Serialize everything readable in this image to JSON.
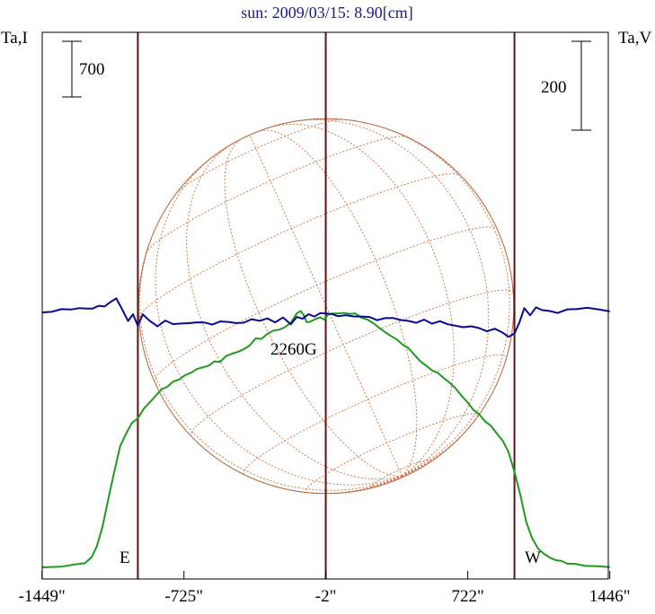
{
  "chart_data": {
    "type": "line",
    "title": "sun: 2009/03/15: 8.90[cm]",
    "left_axis_label": "Ta,I",
    "right_axis_label": "Ta,V",
    "x_ticks": [
      {
        "value": -1449,
        "label": "-1449\""
      },
      {
        "value": -725,
        "label": "-725\""
      },
      {
        "value": -2,
        "label": "-2\""
      },
      {
        "value": 722,
        "label": "722\""
      },
      {
        "value": 1446,
        "label": "1446\""
      }
    ],
    "xlim": [
      -1449,
      1446
    ],
    "scale_bar_left": {
      "label": "700",
      "value": 700
    },
    "scale_bar_right": {
      "label": "200",
      "value": 200
    },
    "limb_lines": [
      -960,
      -2,
      960
    ],
    "disk_radius_arcsec": 960,
    "east_label": "E",
    "west_label": "W",
    "annotation": "2260G",
    "grid": false,
    "series": [
      {
        "color": "#1f9a1f",
        "x": [
          -1449,
          -1350,
          -1280,
          -1230,
          -1195,
          -1170,
          -1140,
          -1110,
          -1080,
          -1050,
          -1020,
          -990,
          -960,
          -930,
          -900,
          -870,
          -840,
          -810,
          -780,
          -750,
          -720,
          -690,
          -660,
          -630,
          -600,
          -570,
          -540,
          -510,
          -480,
          -450,
          -420,
          -390,
          -360,
          -330,
          -300,
          -270,
          -240,
          -210,
          -180,
          -150,
          -130,
          -115,
          -100,
          -85,
          -70,
          -50,
          -30,
          -10,
          10,
          30,
          60,
          90,
          120,
          150,
          180,
          210,
          240,
          270,
          300,
          330,
          360,
          390,
          420,
          450,
          480,
          510,
          540,
          570,
          600,
          630,
          660,
          690,
          720,
          750,
          780,
          810,
          840,
          870,
          900,
          930,
          960,
          990,
          1020,
          1050,
          1080,
          1110,
          1140,
          1170,
          1200,
          1230,
          1270,
          1320,
          1380,
          1446
        ],
        "y": [
          0,
          10,
          25,
          50,
          100,
          220,
          420,
          720,
          1000,
          1260,
          1400,
          1500,
          1560,
          1650,
          1720,
          1790,
          1850,
          1890,
          1930,
          1965,
          2000,
          2030,
          2070,
          2080,
          2110,
          2140,
          2150,
          2200,
          2230,
          2250,
          2270,
          2320,
          2380,
          2390,
          2430,
          2470,
          2480,
          2500,
          2560,
          2640,
          2680,
          2630,
          2560,
          2560,
          2570,
          2600,
          2600,
          2590,
          2630,
          2650,
          2650,
          2650,
          2650,
          2640,
          2610,
          2580,
          2550,
          2500,
          2450,
          2420,
          2370,
          2330,
          2280,
          2220,
          2150,
          2100,
          2060,
          2020,
          1980,
          1920,
          1870,
          1790,
          1720,
          1650,
          1590,
          1530,
          1470,
          1400,
          1320,
          1200,
          1000,
          750,
          480,
          300,
          200,
          140,
          100,
          80,
          60,
          45,
          30,
          20,
          10,
          0
        ]
      },
      {
        "color": "#0a0a8c",
        "x": [
          -1449,
          -1400,
          -1350,
          -1300,
          -1260,
          -1220,
          -1190,
          -1160,
          -1130,
          -1100,
          -1070,
          -1040,
          -1010,
          -985,
          -960,
          -935,
          -900,
          -860,
          -820,
          -780,
          -740,
          -700,
          -660,
          -620,
          -580,
          -540,
          -500,
          -460,
          -420,
          -380,
          -340,
          -300,
          -260,
          -220,
          -180,
          -150,
          -120,
          -90,
          -60,
          -30,
          0,
          30,
          60,
          100,
          140,
          180,
          220,
          260,
          300,
          340,
          380,
          420,
          460,
          500,
          540,
          580,
          620,
          660,
          700,
          740,
          780,
          820,
          860,
          900,
          930,
          960,
          985,
          1010,
          1040,
          1070,
          1100,
          1140,
          1180,
          1230,
          1280,
          1330,
          1380,
          1446
        ],
        "y": [
          0,
          2,
          6,
          8,
          8,
          10,
          8,
          15,
          14,
          22,
          33,
          5,
          -18,
          -5,
          -30,
          -4,
          -20,
          -30,
          -20,
          -25,
          -26,
          -24,
          -22,
          -24,
          -26,
          -22,
          -20,
          -25,
          -23,
          -15,
          -20,
          -12,
          -24,
          -10,
          -28,
          -10,
          -14,
          -5,
          -8,
          -3,
          -1,
          -5,
          -8,
          -6,
          -10,
          -8,
          -12,
          -16,
          -14,
          -12,
          -17,
          -20,
          -22,
          -18,
          -24,
          -21,
          -26,
          -30,
          -34,
          -30,
          -37,
          -41,
          -38,
          -45,
          -55,
          -48,
          -22,
          8,
          -5,
          10,
          6,
          3,
          -2,
          8,
          6,
          12,
          6,
          3
        ]
      }
    ]
  }
}
